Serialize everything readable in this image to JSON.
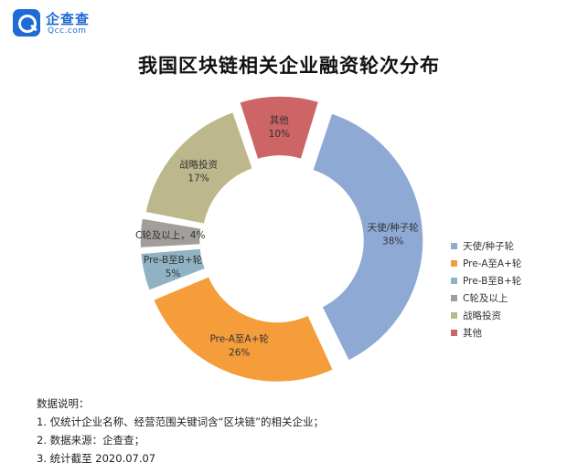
{
  "brand": {
    "name": "企查查",
    "sub": "Qcc.com",
    "color": "#1f6bd6"
  },
  "chart_data": {
    "type": "pie",
    "variant": "donut",
    "title": "我国区块链相关企业融资轮次分布",
    "slices": [
      {
        "label": "天使/种子轮",
        "value": 38,
        "display": "38%",
        "color": "#8ea9d4"
      },
      {
        "label": "Pre-A至A+轮",
        "value": 26,
        "display": "26%",
        "color": "#f59d3b"
      },
      {
        "label": "Pre-B至B+轮",
        "value": 5,
        "display": "5%",
        "color": "#8fb3c3"
      },
      {
        "label": "C轮及以上",
        "value": 4,
        "display": "4%",
        "color": "#a29f9a"
      },
      {
        "label": "战略投资",
        "value": 17,
        "display": "17%",
        "color": "#bdb88c"
      },
      {
        "label": "其他",
        "value": 10,
        "display": "10%",
        "color": "#cd6465"
      }
    ],
    "legend_position": "right"
  },
  "notes": [
    "数据说明：",
    "1. 仅统计企业名称、经营范围关键词含“区块链”的相关企业；",
    "2. 数据来源：企查查；",
    "3. 统计截至 2020.07.07"
  ]
}
